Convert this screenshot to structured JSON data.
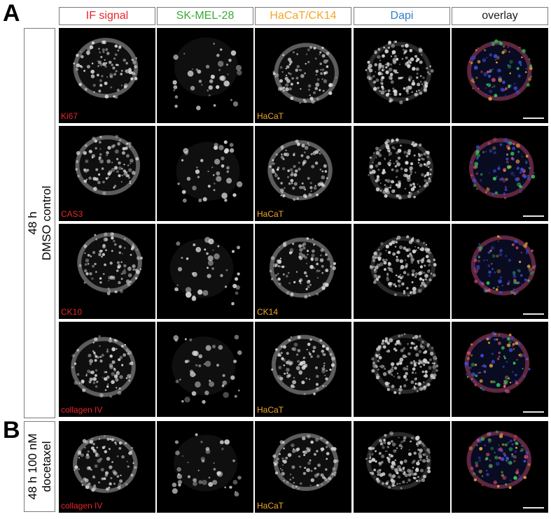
{
  "panels": {
    "a": "A",
    "b": "B"
  },
  "columns": [
    {
      "label": "IF signal",
      "color": "#e8262b"
    },
    {
      "label": "SK-MEL-28",
      "color": "#3aaa35"
    },
    {
      "label": "HaCaT/CK14",
      "color": "#f5a623"
    },
    {
      "label": "Dapi",
      "color": "#2c7fc4"
    },
    {
      "label": "overlay",
      "color": "#1a1a1a"
    }
  ],
  "groups": {
    "a": {
      "line1": "48 h",
      "line2": "DMSO control"
    },
    "b": {
      "line1": "48 h 100 nM",
      "line2": "docetaxel"
    }
  },
  "rows": [
    {
      "if_label": "Ki67",
      "hacat_label": "HaCaT"
    },
    {
      "if_label": "CAS3",
      "hacat_label": "HaCaT"
    },
    {
      "if_label": "CK10",
      "hacat_label": "CK14"
    },
    {
      "if_label": "collagen IV",
      "hacat_label": "HaCaT"
    },
    {
      "if_label": "collagen IV",
      "hacat_label": "HaCaT"
    }
  ],
  "label_colors": {
    "if": "#e8262b",
    "hacat": "#f5a623"
  }
}
